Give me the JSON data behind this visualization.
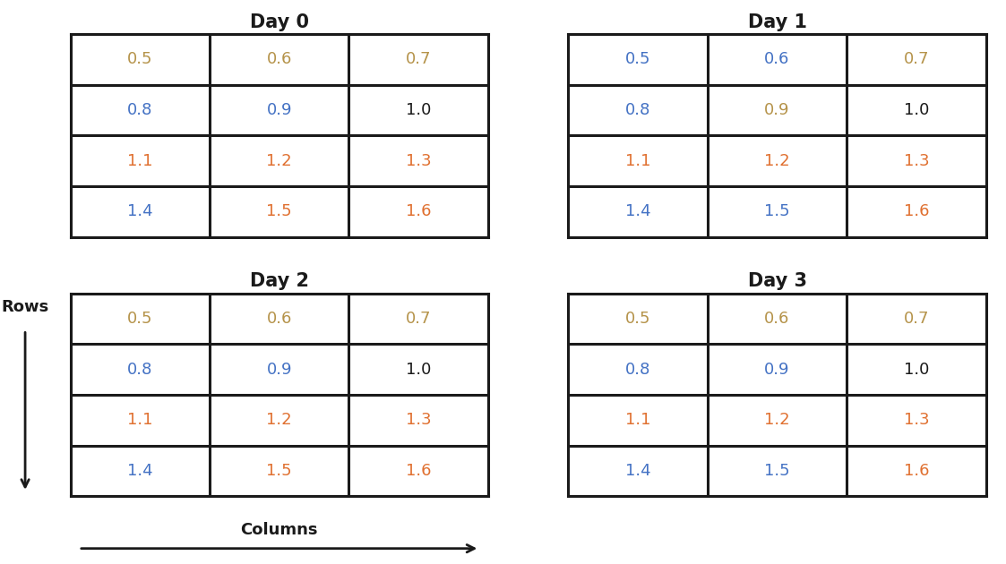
{
  "days": [
    "Day 0",
    "Day 1",
    "Day 2",
    "Day 3"
  ],
  "grid_values": [
    [
      [
        0.5,
        0.6,
        0.7
      ],
      [
        0.8,
        0.9,
        1.0
      ],
      [
        1.1,
        1.2,
        1.3
      ],
      [
        1.4,
        1.5,
        1.6
      ]
    ],
    [
      [
        0.5,
        0.6,
        0.7
      ],
      [
        0.8,
        0.9,
        1.0
      ],
      [
        1.1,
        1.2,
        1.3
      ],
      [
        1.4,
        1.5,
        1.6
      ]
    ],
    [
      [
        0.5,
        0.6,
        0.7
      ],
      [
        0.8,
        0.9,
        1.0
      ],
      [
        1.1,
        1.2,
        1.3
      ],
      [
        1.4,
        1.5,
        1.6
      ]
    ],
    [
      [
        0.5,
        0.6,
        0.7
      ],
      [
        0.8,
        0.9,
        1.0
      ],
      [
        1.1,
        1.2,
        1.3
      ],
      [
        1.4,
        1.5,
        1.6
      ]
    ]
  ],
  "cell_colors": {
    "0": [
      [
        "#b5934a",
        "#b5934a",
        "#b5934a"
      ],
      [
        "#4472c4",
        "#4472c4",
        "#1a1a1a"
      ],
      [
        "#e07030",
        "#e07030",
        "#e07030"
      ],
      [
        "#4472c4",
        "#e07030",
        "#e07030"
      ]
    ],
    "1": [
      [
        "#4472c4",
        "#4472c4",
        "#b5934a"
      ],
      [
        "#4472c4",
        "#b5934a",
        "#1a1a1a"
      ],
      [
        "#e07030",
        "#e07030",
        "#e07030"
      ],
      [
        "#4472c4",
        "#4472c4",
        "#e07030"
      ]
    ],
    "2": [
      [
        "#b5934a",
        "#b5934a",
        "#b5934a"
      ],
      [
        "#4472c4",
        "#4472c4",
        "#1a1a1a"
      ],
      [
        "#e07030",
        "#e07030",
        "#e07030"
      ],
      [
        "#4472c4",
        "#e07030",
        "#e07030"
      ]
    ],
    "3": [
      [
        "#b5934a",
        "#b5934a",
        "#b5934a"
      ],
      [
        "#4472c4",
        "#4472c4",
        "#1a1a1a"
      ],
      [
        "#e07030",
        "#e07030",
        "#e07030"
      ],
      [
        "#4472c4",
        "#4472c4",
        "#e07030"
      ]
    ]
  },
  "background_color": "#ffffff",
  "border_color": "#1a1a1a",
  "title_fontsize": 15,
  "cell_fontsize": 13,
  "label_fontsize": 13,
  "rows_label": "Rows",
  "cols_label": "Columns",
  "n_rows": 4,
  "n_cols": 3
}
